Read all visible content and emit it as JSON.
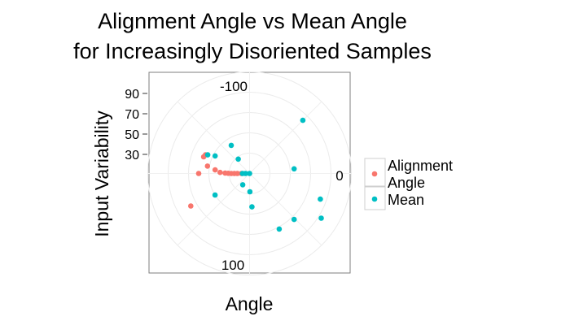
{
  "chart_data": {
    "type": "scatter",
    "coord": "polar",
    "title_lines": [
      "Alignment Angle vs Mean Angle",
      "for Increasingly Disoriented Samples"
    ],
    "xlabel": "Angle",
    "ylabel": "Input Variability",
    "angle_ticks": [
      "-100",
      "0",
      "100"
    ],
    "radius_ticks": [
      "90",
      "70",
      "50",
      "30"
    ],
    "legend": [
      {
        "label_lines": [
          "Alignment",
          "Angle"
        ],
        "color": "#F8766D"
      },
      {
        "label_lines": [
          "Mean"
        ],
        "color": "#00BFC4"
      }
    ],
    "grid": true,
    "series": [
      {
        "name": "Alignment Angle",
        "color": "#F8766D",
        "points": [
          {
            "angle": -180,
            "radius": 50
          },
          {
            "angle": -160,
            "radius": 48
          },
          {
            "angle": -170,
            "radius": 42
          },
          {
            "angle": -174,
            "radius": 34
          },
          {
            "angle": -178,
            "radius": 29
          },
          {
            "angle": -179,
            "radius": 24
          },
          {
            "angle": -179.5,
            "radius": 21
          },
          {
            "angle": -180,
            "radius": 18
          },
          {
            "angle": -180,
            "radius": 15
          },
          {
            "angle": -180,
            "radius": 12
          },
          {
            "angle": -180,
            "radius": 8
          },
          {
            "angle": 151,
            "radius": 66
          },
          {
            "angle": -157,
            "radius": 47
          }
        ]
      },
      {
        "name": "Mean",
        "color": "#00BFC4",
        "points": [
          {
            "angle": -180,
            "radius": 0
          },
          {
            "angle": -180,
            "radius": 4
          },
          {
            "angle": -180,
            "radius": 7
          },
          {
            "angle": -128,
            "radius": 18
          },
          {
            "angle": -123,
            "radius": 33
          },
          {
            "angle": -153,
            "radius": 38
          },
          {
            "angle": -156,
            "radius": 45
          },
          {
            "angle": 148,
            "radius": 40
          },
          {
            "angle": 121,
            "radius": 13
          },
          {
            "angle": 89,
            "radius": 18
          },
          {
            "angle": 86,
            "radius": 33
          },
          {
            "angle": 62,
            "radius": 62
          },
          {
            "angle": 46,
            "radius": 63
          },
          {
            "angle": -6,
            "radius": 44
          },
          {
            "angle": -45,
            "radius": 74
          },
          {
            "angle": 20,
            "radius": 74
          },
          {
            "angle": 32,
            "radius": 83
          }
        ]
      }
    ]
  }
}
